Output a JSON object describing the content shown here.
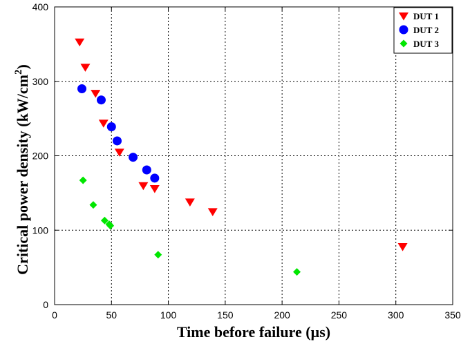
{
  "chart_data": {
    "type": "scatter",
    "title": "",
    "xlabel": "Time before failure  (µs)",
    "ylabel_main": "Critical power density (kW/cm",
    "ylabel_sup": "2",
    "ylabel_close": ")",
    "xlim": [
      0,
      350
    ],
    "ylim": [
      0,
      400
    ],
    "xticks": [
      "0",
      "50",
      "100",
      "150",
      "200",
      "250",
      "300",
      "350"
    ],
    "yticks": [
      "0",
      "100",
      "200",
      "300",
      "400"
    ],
    "grid": true,
    "legend_position": "top-right",
    "series": [
      {
        "name": "DUT 1",
        "marker": "triangle-down",
        "color": "#ff0000",
        "points": [
          [
            22,
            353
          ],
          [
            27,
            319
          ],
          [
            36,
            284
          ],
          [
            43,
            244
          ],
          [
            57,
            205
          ],
          [
            78,
            160
          ],
          [
            88,
            156
          ],
          [
            119,
            138
          ],
          [
            139,
            125
          ],
          [
            306,
            78
          ]
        ]
      },
      {
        "name": "DUT 2",
        "marker": "circle",
        "color": "#0000ff",
        "points": [
          [
            24,
            290
          ],
          [
            41,
            275
          ],
          [
            50,
            239
          ],
          [
            55,
            220
          ],
          [
            69,
            198
          ],
          [
            81,
            181
          ],
          [
            88,
            170
          ]
        ]
      },
      {
        "name": "DUT 3",
        "marker": "diamond",
        "color": "#00e600",
        "points": [
          [
            25,
            167
          ],
          [
            34,
            134
          ],
          [
            44,
            113
          ],
          [
            48,
            108
          ],
          [
            49,
            106
          ],
          [
            91,
            67
          ],
          [
            213,
            44
          ]
        ]
      }
    ]
  }
}
